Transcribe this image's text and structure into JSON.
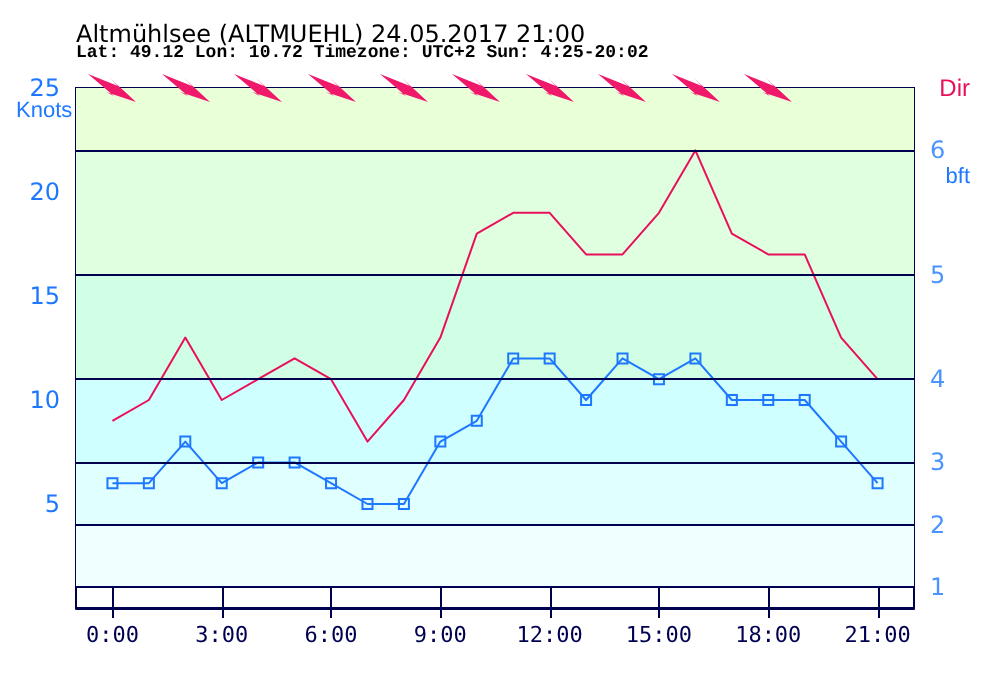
{
  "chart_data": {
    "type": "line",
    "title": "Altmühlsee (ALTMUEHL) 24.05.2017 21:00",
    "subtitle": "Lat: 49.12 Lon: 10.72 Timezone: UTC+2 Sun: 4:25-20:02",
    "ylabel": "Knots",
    "annotations": [
      "Dir",
      "bft",
      "1",
      "2",
      "3",
      "4",
      "5",
      "6"
    ],
    "x": [
      0,
      1,
      2,
      3,
      4,
      5,
      6,
      7,
      8,
      9,
      10,
      11,
      12,
      13,
      14,
      15,
      16,
      17,
      18,
      19,
      20,
      21
    ],
    "series": [
      {
        "color": "#e8105a",
        "marker": "none",
        "values": [
          9,
          10,
          13,
          10,
          11,
          12,
          11,
          8,
          10,
          13,
          18,
          19,
          19,
          17,
          17,
          19,
          22,
          18,
          17,
          17,
          13,
          11
        ]
      },
      {
        "color": "#1e78ff",
        "marker": "square",
        "values": [
          6,
          6,
          8,
          6,
          7,
          7,
          6,
          5,
          5,
          8,
          9,
          12,
          12,
          10,
          12,
          11,
          12,
          10,
          10,
          10,
          8,
          6
        ]
      }
    ],
    "xlim": [
      -1,
      22
    ],
    "xticks": [
      {
        "value": 0,
        "label": "0:00"
      },
      {
        "value": 3,
        "label": "3:00"
      },
      {
        "value": 6,
        "label": "6:00"
      },
      {
        "value": 9,
        "label": "9:00"
      },
      {
        "value": 12,
        "label": "12:00"
      },
      {
        "value": 15,
        "label": "15:00"
      },
      {
        "value": 18,
        "label": "18:00"
      },
      {
        "value": 21,
        "label": "21:00"
      }
    ],
    "ylim": [
      0,
      25
    ],
    "yticks": [
      5,
      10,
      15,
      20,
      25
    ],
    "ref_lines": [
      {
        "axis": "y",
        "value": 1,
        "color": "#000050"
      },
      {
        "axis": "y",
        "value": 4,
        "color": "#000050"
      },
      {
        "axis": "y",
        "value": 7,
        "color": "#000050"
      },
      {
        "axis": "y",
        "value": 11,
        "color": "#000050"
      },
      {
        "axis": "y",
        "value": 16,
        "color": "#000050"
      },
      {
        "axis": "y",
        "value": 22,
        "color": "#000050"
      }
    ],
    "bands": [
      {
        "axis": "y",
        "from": 1,
        "to": 4,
        "color": "#f0ffff"
      },
      {
        "axis": "y",
        "from": 4,
        "to": 7,
        "color": "#e0ffff"
      },
      {
        "axis": "y",
        "from": 7,
        "to": 11,
        "color": "#d0ffff"
      },
      {
        "axis": "y",
        "from": 11,
        "to": 16,
        "color": "#d0ffe6"
      },
      {
        "axis": "y",
        "from": 16,
        "to": 22,
        "color": "#e0ffe0"
      },
      {
        "axis": "y",
        "from": 22,
        "to": 25,
        "color": "#e8ffd8"
      }
    ],
    "grid": "x"
  }
}
